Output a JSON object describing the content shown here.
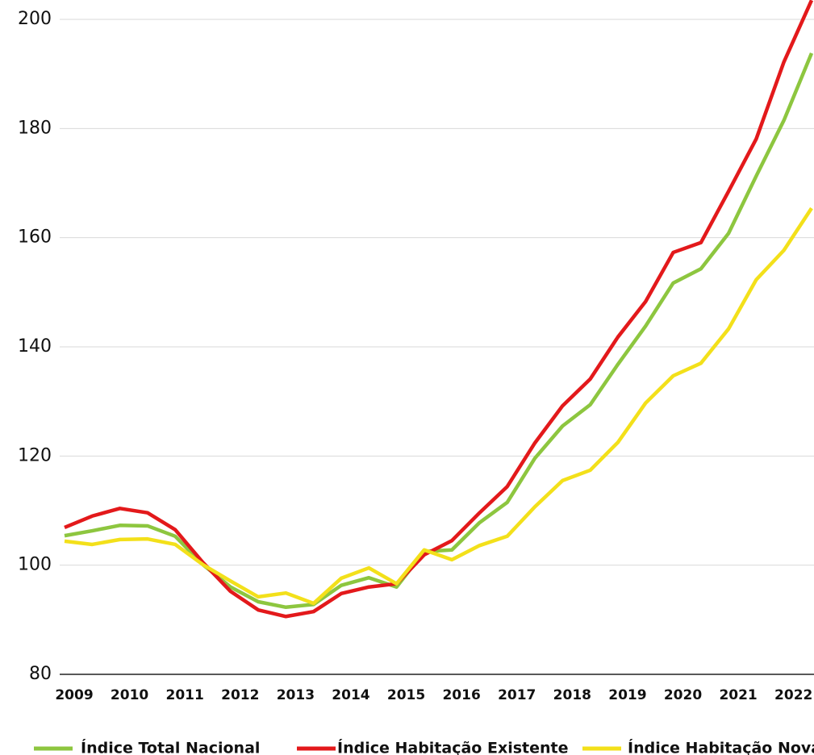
{
  "chart_data": {
    "type": "line",
    "categories": [
      "2009",
      null,
      "2010",
      null,
      "2011",
      null,
      "2012",
      null,
      "2013",
      null,
      "2014",
      null,
      "2015",
      null,
      "2016",
      null,
      "2017",
      null,
      "2018",
      null,
      "2019",
      null,
      "2020",
      null,
      "2021",
      null,
      "2022",
      null
    ],
    "series": [
      {
        "name": "Índice Total Nacional",
        "color": "#8dc63f",
        "values": [
          105.4,
          106.3,
          107.3,
          107.2,
          105.3,
          100.1,
          96.0,
          93.3,
          92.3,
          92.8,
          96.3,
          97.7,
          96.0,
          102.5,
          102.8,
          107.8,
          111.5,
          119.6,
          125.5,
          129.4,
          136.8,
          143.8,
          151.7,
          154.3,
          160.8,
          171.3,
          181.5,
          193.8
        ]
      },
      {
        "name": "Índice Habitação Existente",
        "color": "#e3191b",
        "values": [
          106.9,
          109.0,
          110.4,
          109.6,
          106.5,
          100.5,
          95.2,
          91.8,
          90.6,
          91.5,
          94.8,
          96.0,
          96.6,
          101.9,
          104.5,
          109.6,
          114.4,
          122.4,
          129.2,
          134.1,
          141.8,
          148.3,
          157.3,
          159.1,
          168.5,
          178.1,
          192.2,
          203.5
        ]
      },
      {
        "name": "Índice Habitação Nova",
        "color": "#f3e01a",
        "values": [
          104.4,
          103.8,
          104.7,
          104.8,
          103.8,
          100.1,
          97.1,
          94.2,
          94.9,
          93.0,
          97.6,
          99.5,
          96.6,
          102.8,
          101.0,
          103.6,
          105.3,
          110.7,
          115.5,
          117.4,
          122.5,
          129.7,
          134.7,
          137.0,
          143.3,
          152.3,
          157.7,
          165.4
        ]
      }
    ],
    "ylim": [
      80,
      200
    ],
    "yticks": [
      80,
      100,
      120,
      140,
      160,
      180,
      200
    ],
    "grid": true
  }
}
